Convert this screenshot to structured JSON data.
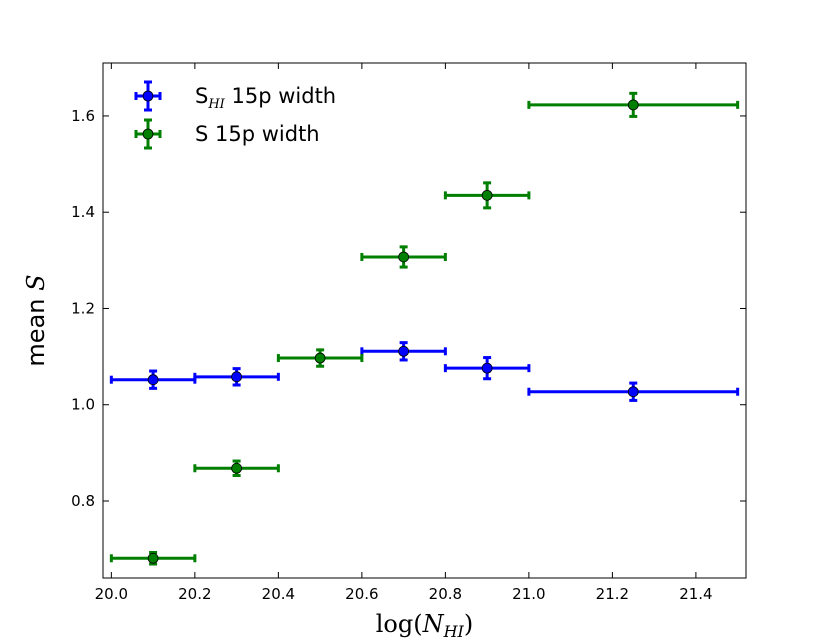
{
  "chart_data": {
    "type": "scatter",
    "title": "",
    "xlabel_prefix": "log(",
    "xlabel_var": "N",
    "xlabel_sub": "HI",
    "xlabel_suffix": ")",
    "ylabel_text": "mean ",
    "ylabel_var": "S",
    "xlim": [
      19.98,
      21.52
    ],
    "ylim": [
      0.64,
      1.71
    ],
    "xticks": [
      20.0,
      20.2,
      20.4,
      20.6,
      20.8,
      21.0,
      21.2,
      21.4
    ],
    "xtick_labels": [
      "20.0",
      "20.2",
      "20.4",
      "20.6",
      "20.8",
      "21.0",
      "21.2",
      "21.4"
    ],
    "yticks": [
      0.8,
      1.0,
      1.2,
      1.4,
      1.6
    ],
    "ytick_labels": [
      "0.8",
      "1.0",
      "1.2",
      "1.4",
      "1.6"
    ],
    "grid": false,
    "legend_position": "top-left",
    "series": [
      {
        "name": "S_HI 15p width",
        "legend_main": "S",
        "legend_sub": "HI",
        "legend_rest": " 15p width",
        "color": "#0000ff",
        "points": [
          {
            "x": 20.1,
            "y": 1.052,
            "xlo": 20.0,
            "xhi": 20.2,
            "yerr": 0.018
          },
          {
            "x": 20.3,
            "y": 1.058,
            "xlo": 20.2,
            "xhi": 20.4,
            "yerr": 0.017
          },
          {
            "x": 20.7,
            "y": 1.111,
            "xlo": 20.6,
            "xhi": 20.8,
            "yerr": 0.018
          },
          {
            "x": 20.9,
            "y": 1.076,
            "xlo": 20.8,
            "xhi": 21.0,
            "yerr": 0.022
          },
          {
            "x": 21.25,
            "y": 1.027,
            "xlo": 21.0,
            "xhi": 21.5,
            "yerr": 0.018
          }
        ]
      },
      {
        "name": "S 15p width",
        "legend_main": "S 15p width",
        "legend_sub": "",
        "legend_rest": "",
        "color": "#007f00",
        "points": [
          {
            "x": 20.1,
            "y": 0.681,
            "xlo": 20.0,
            "xhi": 20.2,
            "yerr": 0.012
          },
          {
            "x": 20.3,
            "y": 0.868,
            "xlo": 20.2,
            "xhi": 20.4,
            "yerr": 0.015
          },
          {
            "x": 20.5,
            "y": 1.097,
            "xlo": 20.4,
            "xhi": 20.6,
            "yerr": 0.017
          },
          {
            "x": 20.7,
            "y": 1.307,
            "xlo": 20.6,
            "xhi": 20.8,
            "yerr": 0.021
          },
          {
            "x": 20.9,
            "y": 1.435,
            "xlo": 20.8,
            "xhi": 21.0,
            "yerr": 0.026
          },
          {
            "x": 21.25,
            "y": 1.623,
            "xlo": 21.0,
            "xhi": 21.5,
            "yerr": 0.024
          }
        ]
      }
    ]
  }
}
